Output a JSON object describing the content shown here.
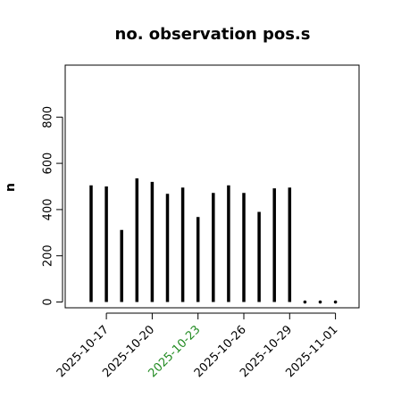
{
  "chart_data": {
    "type": "bar",
    "title": "no. observation pos.s",
    "xlabel": "",
    "ylabel": "n",
    "ylim": [
      -25,
      1025
    ],
    "yticks": [
      0,
      200,
      400,
      600,
      800
    ],
    "grid": false,
    "legend": "none",
    "categories": [
      "2025-10-16",
      "2025-10-17",
      "2025-10-18",
      "2025-10-19",
      "2025-10-20",
      "2025-10-21",
      "2025-10-22",
      "2025-10-23",
      "2025-10-24",
      "2025-10-25",
      "2025-10-26",
      "2025-10-27",
      "2025-10-28",
      "2025-10-29",
      "2025-10-30",
      "2025-10-31",
      "2025-11-01"
    ],
    "values": [
      505,
      500,
      312,
      535,
      520,
      468,
      495,
      368,
      472,
      505,
      472,
      390,
      492,
      495,
      0,
      0,
      0
    ],
    "xticks": [
      {
        "label": "2025-10-17",
        "color": "#000000"
      },
      {
        "label": "2025-10-20",
        "color": "#000000"
      },
      {
        "label": "2025-10-23",
        "color": "#228B22"
      },
      {
        "label": "2025-10-26",
        "color": "#000000"
      },
      {
        "label": "2025-10-29",
        "color": "#000000"
      },
      {
        "label": "2025-11-01",
        "color": "#000000"
      }
    ],
    "colors": {
      "bar": "#000000",
      "highlight_tick": "#228B22"
    }
  }
}
